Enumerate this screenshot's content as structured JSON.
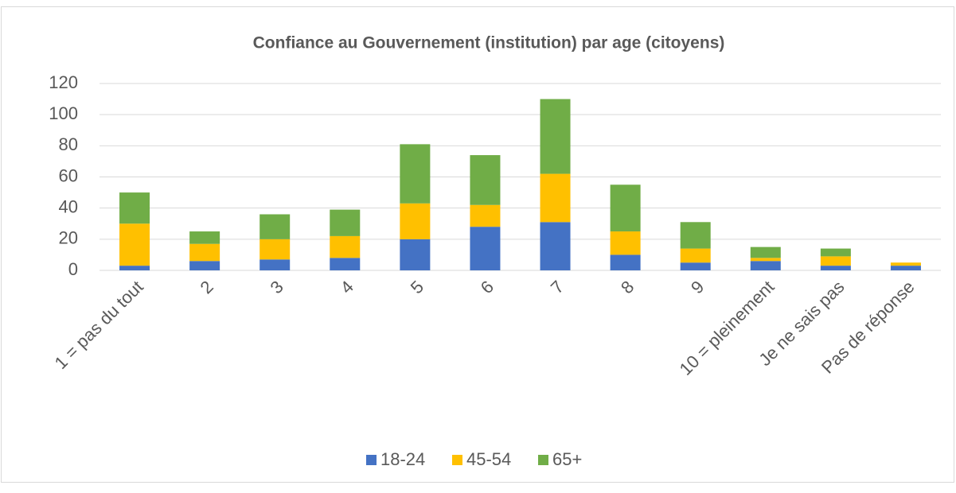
{
  "chart_data": {
    "type": "stacked_bar",
    "title": "Confiance au Gouvernement (institution) par age (citoyens)",
    "categories": [
      "1 = pas du tout",
      "2",
      "3",
      "4",
      "5",
      "6",
      "7",
      "8",
      "9",
      "10 = pleinement",
      "Je ne sais pas",
      "Pas de réponse"
    ],
    "series": [
      {
        "name": "18-24",
        "color": "#4472c4",
        "values": [
          3,
          6,
          7,
          8,
          20,
          28,
          31,
          10,
          5,
          6,
          3,
          3
        ]
      },
      {
        "name": "45-54",
        "color": "#ffc000",
        "values": [
          27,
          11,
          13,
          14,
          23,
          14,
          31,
          15,
          9,
          2,
          6,
          2
        ]
      },
      {
        "name": "65+",
        "color": "#70ad47",
        "values": [
          20,
          8,
          16,
          17,
          38,
          32,
          48,
          30,
          17,
          7,
          5,
          0
        ]
      }
    ],
    "ylim": [
      0,
      120
    ],
    "yticks": [
      0,
      20,
      40,
      60,
      80,
      100,
      120
    ],
    "grid": true,
    "legend": "bottom"
  }
}
